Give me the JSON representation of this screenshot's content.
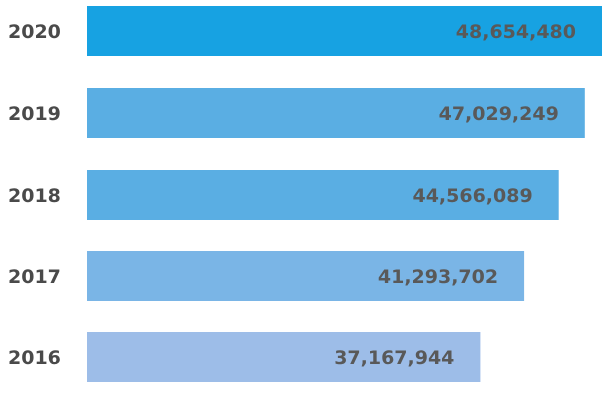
{
  "chart_data": {
    "type": "bar",
    "orientation": "horizontal",
    "categories": [
      "2020",
      "2019",
      "2018",
      "2017",
      "2016"
    ],
    "values": [
      48654480,
      47029249,
      44566089,
      41293702,
      37167944
    ],
    "value_labels": [
      "48,654,480",
      "47,029,249",
      "44,566,089",
      "41,293,702",
      "37,167,944"
    ],
    "colors": [
      "#17a2e2",
      "#5aaee3",
      "#5aaee3",
      "#7ab5e6",
      "#9dbde8"
    ],
    "title": "",
    "xlabel": "",
    "ylabel": "",
    "grid": false,
    "legend": "none"
  }
}
